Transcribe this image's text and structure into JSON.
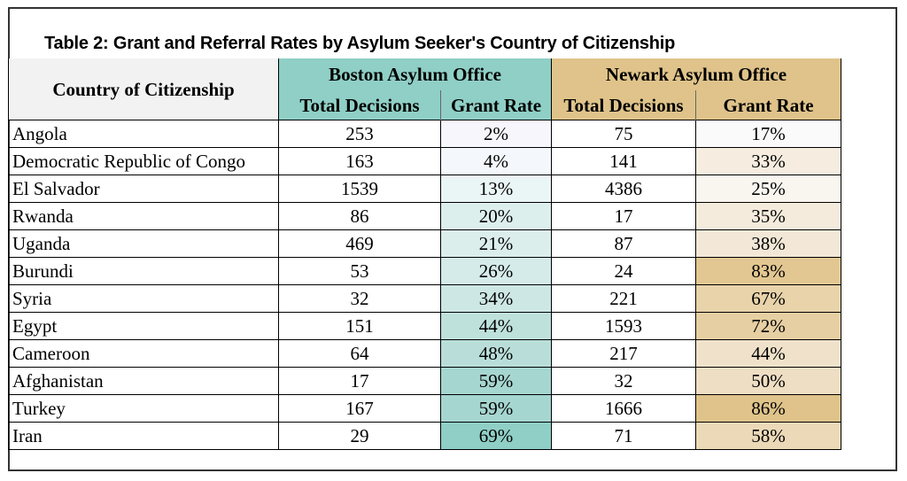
{
  "title": "Table 2: Grant and Referral Rates by Asylum Seeker's Country of Citizenship",
  "header": {
    "country": "Country of Citizenship",
    "boston": "Boston Asylum Office",
    "newark": "Newark Asylum Office",
    "total_decisions": "Total Decisions",
    "grant_rate": "Grant Rate"
  },
  "colors": {
    "boston_header": "#8fcfc6",
    "newark_header": "#dfc38a"
  },
  "rows": [
    {
      "country": "Angola",
      "boston_total": "253",
      "boston_rate": "2%",
      "newark_total": "75",
      "newark_rate": "17%",
      "boston_bg": "#f6f6fc",
      "newark_bg": "#fbfafb"
    },
    {
      "country": "Democratic Republic of Congo",
      "boston_total": "163",
      "boston_rate": "4%",
      "newark_total": "141",
      "newark_rate": "33%",
      "boston_bg": "#f4f7fb",
      "newark_bg": "#f6ede0"
    },
    {
      "country": "El Salvador",
      "boston_total": "1539",
      "boston_rate": "13%",
      "newark_total": "4386",
      "newark_rate": "25%",
      "boston_bg": "#eaf5f5",
      "newark_bg": "#f9f5ef"
    },
    {
      "country": "Rwanda",
      "boston_total": "86",
      "boston_rate": "20%",
      "newark_total": "17",
      "newark_rate": "35%",
      "boston_bg": "#ddefed",
      "newark_bg": "#f5ebdc"
    },
    {
      "country": "Uganda",
      "boston_total": "469",
      "boston_rate": "21%",
      "newark_total": "87",
      "newark_rate": "38%",
      "boston_bg": "#dbeeec",
      "newark_bg": "#f3e8d7"
    },
    {
      "country": "Burundi",
      "boston_total": "53",
      "boston_rate": "26%",
      "newark_total": "24",
      "newark_rate": "83%",
      "boston_bg": "#d5ebe9",
      "newark_bg": "#e2c792"
    },
    {
      "country": "Syria",
      "boston_total": "32",
      "boston_rate": "34%",
      "newark_total": "221",
      "newark_rate": "67%",
      "boston_bg": "#cde7e4",
      "newark_bg": "#e8d3aa"
    },
    {
      "country": "Egypt",
      "boston_total": "151",
      "boston_rate": "44%",
      "newark_total": "1593",
      "newark_rate": "72%",
      "boston_bg": "#bfe1dc",
      "newark_bg": "#e6cfa2"
    },
    {
      "country": "Cameroon",
      "boston_total": "64",
      "boston_rate": "48%",
      "newark_total": "217",
      "newark_rate": "44%",
      "boston_bg": "#b9ded9",
      "newark_bg": "#f0e2ca"
    },
    {
      "country": "Afghanistan",
      "boston_total": "17",
      "boston_rate": "59%",
      "newark_total": "32",
      "newark_rate": "50%",
      "boston_bg": "#a6d6d0",
      "newark_bg": "#eedec3"
    },
    {
      "country": "Turkey",
      "boston_total": "167",
      "boston_rate": "59%",
      "newark_total": "1666",
      "newark_rate": "86%",
      "boston_bg": "#a6d6d0",
      "newark_bg": "#dfc38a"
    },
    {
      "country": "Iran",
      "boston_total": "29",
      "boston_rate": "69%",
      "newark_total": "71",
      "newark_rate": "58%",
      "boston_bg": "#8fcfc6",
      "newark_bg": "#ecd9b8"
    }
  ]
}
